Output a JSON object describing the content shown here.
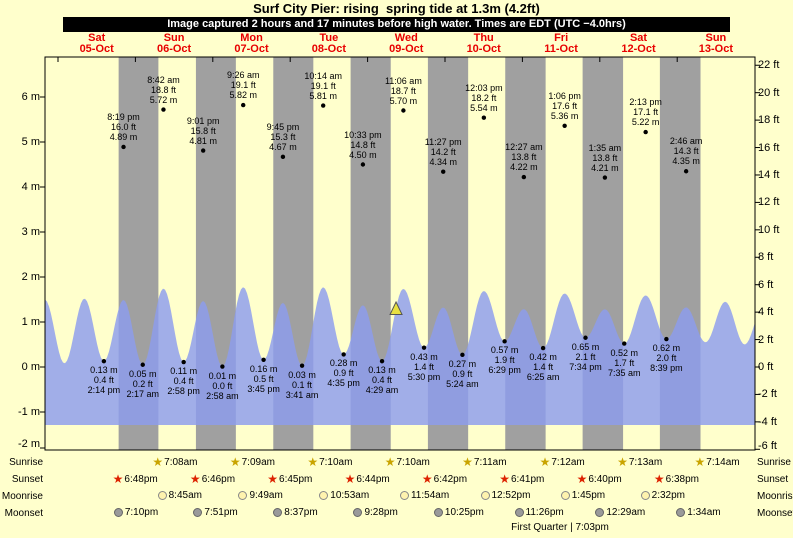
{
  "header": {
    "title": "Surf City Pier: rising  spring tide at 1.3m (4.2ft)",
    "subtitle": "Image captured 2 hours and 17 minutes before high water. Times are EDT (UTC −4.0hrs)"
  },
  "days": [
    {
      "name": "Sat",
      "date": "05-Oct"
    },
    {
      "name": "Sun",
      "date": "06-Oct"
    },
    {
      "name": "Mon",
      "date": "07-Oct"
    },
    {
      "name": "Tue",
      "date": "08-Oct"
    },
    {
      "name": "Wed",
      "date": "09-Oct"
    },
    {
      "name": "Thu",
      "date": "10-Oct"
    },
    {
      "name": "Fri",
      "date": "11-Oct"
    },
    {
      "name": "Sat",
      "date": "12-Oct"
    },
    {
      "name": "Sun",
      "date": "13-Oct"
    }
  ],
  "axes": {
    "meters": [
      {
        "v": 6,
        "label": "6 m"
      },
      {
        "v": 5,
        "label": "5 m"
      },
      {
        "v": 4,
        "label": "4 m"
      },
      {
        "v": 3,
        "label": "3 m"
      },
      {
        "v": 2,
        "label": "2 m"
      },
      {
        "v": 1,
        "label": "1 m"
      },
      {
        "v": 0,
        "label": "0 m"
      },
      {
        "v": -1,
        "label": "-1 m"
      },
      {
        "v": -2,
        "label": "-2 m"
      }
    ],
    "feet": [
      {
        "v": 22,
        "label": "22 ft"
      },
      {
        "v": 20,
        "label": "20 ft"
      },
      {
        "v": 18,
        "label": "18 ft"
      },
      {
        "v": 16,
        "label": "16 ft"
      },
      {
        "v": 14,
        "label": "14 ft"
      },
      {
        "v": 12,
        "label": "12 ft"
      },
      {
        "v": 10,
        "label": "10 ft"
      },
      {
        "v": 8,
        "label": "8 ft"
      },
      {
        "v": 6,
        "label": "6 ft"
      },
      {
        "v": 4,
        "label": "4 ft"
      },
      {
        "v": 2,
        "label": "2 ft"
      },
      {
        "v": 0,
        "label": "0 ft"
      },
      {
        "v": -2,
        "label": "-2 ft"
      },
      {
        "v": -4,
        "label": "-4 ft"
      },
      {
        "v": -6,
        "label": "-6 ft"
      }
    ]
  },
  "chart_data": {
    "type": "area",
    "title": "Surf City Pier: rising  spring tide at 1.3m (4.2ft)",
    "y_axis": {
      "meters_range": [
        -2,
        7
      ],
      "feet_range": [
        -6,
        22
      ],
      "grid": false
    },
    "high_tides": [
      {
        "day": 0,
        "hour": 20.32,
        "time": "8:19 pm",
        "ft": "16.0 ft",
        "m": "4.89 m"
      },
      {
        "day": 1,
        "hour": 8.7,
        "time": "8:42 am",
        "ft": "18.8 ft",
        "m": "5.72 m"
      },
      {
        "day": 1,
        "hour": 21.02,
        "time": "9:01 pm",
        "ft": "15.8 ft",
        "m": "4.81 m"
      },
      {
        "day": 2,
        "hour": 9.43,
        "time": "9:26 am",
        "ft": "19.1 ft",
        "m": "5.82 m"
      },
      {
        "day": 2,
        "hour": 21.75,
        "time": "9:45 pm",
        "ft": "15.3 ft",
        "m": "4.67 m"
      },
      {
        "day": 3,
        "hour": 10.23,
        "time": "10:14 am",
        "ft": "19.1 ft",
        "m": "5.81 m"
      },
      {
        "day": 3,
        "hour": 22.55,
        "time": "10:33 pm",
        "ft": "14.8 ft",
        "m": "4.50 m"
      },
      {
        "day": 4,
        "hour": 11.1,
        "time": "11:06 am",
        "ft": "18.7 ft",
        "m": "5.70 m"
      },
      {
        "day": 4,
        "hour": 23.45,
        "time": "11:27 pm",
        "ft": "14.2 ft",
        "m": "4.34 m"
      },
      {
        "day": 5,
        "hour": 12.05,
        "time": "12:03 pm",
        "ft": "18.2 ft",
        "m": "5.54 m"
      },
      {
        "day": 6,
        "hour": 0.45,
        "time": "12:27 am",
        "ft": "13.8 ft",
        "m": "4.22 m"
      },
      {
        "day": 6,
        "hour": 13.1,
        "time": "1:06 pm",
        "ft": "17.6 ft",
        "m": "5.36 m"
      },
      {
        "day": 7,
        "hour": 1.58,
        "time": "1:35 am",
        "ft": "13.8 ft",
        "m": "4.21 m"
      },
      {
        "day": 7,
        "hour": 14.22,
        "time": "2:13 pm",
        "ft": "17.1 ft",
        "m": "5.22 m"
      },
      {
        "day": 8,
        "hour": 2.77,
        "time": "2:46 am",
        "ft": "14.3 ft",
        "m": "4.35 m"
      }
    ],
    "low_tides": [
      {
        "day": 0,
        "hour": 14.23,
        "m": "0.13 m",
        "ft": "0.4 ft",
        "time": "2:14 pm"
      },
      {
        "day": 1,
        "hour": 2.28,
        "m": "0.05 m",
        "ft": "0.2 ft",
        "time": "2:17 am"
      },
      {
        "day": 1,
        "hour": 14.97,
        "m": "0.11 m",
        "ft": "0.4 ft",
        "time": "2:58 pm"
      },
      {
        "day": 2,
        "hour": 2.97,
        "m": "0.01 m",
        "ft": "0.0 ft",
        "time": "2:58 am"
      },
      {
        "day": 2,
        "hour": 15.75,
        "m": "0.16 m",
        "ft": "0.5 ft",
        "time": "3:45 pm"
      },
      {
        "day": 3,
        "hour": 3.68,
        "m": "0.03 m",
        "ft": "0.1 ft",
        "time": "3:41 am"
      },
      {
        "day": 3,
        "hour": 16.58,
        "m": "0.28 m",
        "ft": "0.9 ft",
        "time": "4:35 pm"
      },
      {
        "day": 4,
        "hour": 4.48,
        "m": "0.13 m",
        "ft": "0.4 ft",
        "time": "4:29 am"
      },
      {
        "day": 4,
        "hour": 17.5,
        "m": "0.43 m",
        "ft": "1.4 ft",
        "time": "5:30 pm"
      },
      {
        "day": 5,
        "hour": 5.4,
        "m": "0.27 m",
        "ft": "0.9 ft",
        "time": "5:24 am"
      },
      {
        "day": 5,
        "hour": 18.48,
        "m": "0.57 m",
        "ft": "1.9 ft",
        "time": "6:29 pm"
      },
      {
        "day": 6,
        "hour": 6.42,
        "m": "0.42 m",
        "ft": "1.4 ft",
        "time": "6:25 am"
      },
      {
        "day": 6,
        "hour": 19.57,
        "m": "0.65 m",
        "ft": "2.1 ft",
        "time": "7:34 pm"
      },
      {
        "day": 7,
        "hour": 7.58,
        "m": "0.52 m",
        "ft": "1.7 ft",
        "time": "7:35 am"
      },
      {
        "day": 7,
        "hour": 20.65,
        "m": "0.62 m",
        "ft": "2.0 ft",
        "time": "8:39 pm"
      }
    ],
    "curve_edge": [
      [
        -4.1,
        1.5
      ],
      [
        2.0,
        0.08
      ],
      [
        8.2,
        1.52
      ],
      [
        200.8,
        0.55
      ],
      [
        206.9,
        1.45
      ],
      [
        212.9,
        0.5
      ],
      [
        219.0,
        1.4
      ]
    ],
    "current_marker": {
      "day": 4,
      "hour": 8.82,
      "height_m": 1.3,
      "label": "1.3m (4.2ft)"
    },
    "colors": {
      "background": "#ffffcc",
      "night": "#a0a0a0",
      "wave": "#8c9cee",
      "marker": "#e8e040",
      "day_label": "#e80000",
      "sunrise_star": "#c9a400",
      "sunset_star": "#dd2200",
      "moonrise_fill": "#fff3ae",
      "moonset_fill": "#9a9a9a"
    }
  },
  "astro": {
    "sunrise": {
      "label": "Sunrise",
      "items": [
        {
          "day": 1,
          "hour": 7.13,
          "time": "7:08am"
        },
        {
          "day": 2,
          "hour": 7.15,
          "time": "7:09am"
        },
        {
          "day": 3,
          "hour": 7.17,
          "time": "7:10am"
        },
        {
          "day": 4,
          "hour": 7.17,
          "time": "7:10am"
        },
        {
          "day": 5,
          "hour": 7.18,
          "time": "7:11am"
        },
        {
          "day": 6,
          "hour": 7.2,
          "time": "7:12am"
        },
        {
          "day": 7,
          "hour": 7.22,
          "time": "7:13am"
        },
        {
          "day": 8,
          "hour": 7.23,
          "time": "7:14am"
        }
      ]
    },
    "sunset": {
      "label": "Sunset",
      "items": [
        {
          "day": 0,
          "hour": 18.8,
          "time": "6:48pm"
        },
        {
          "day": 1,
          "hour": 18.77,
          "time": "6:46pm"
        },
        {
          "day": 2,
          "hour": 18.75,
          "time": "6:45pm"
        },
        {
          "day": 3,
          "hour": 18.73,
          "time": "6:44pm"
        },
        {
          "day": 4,
          "hour": 18.7,
          "time": "6:42pm"
        },
        {
          "day": 5,
          "hour": 18.68,
          "time": "6:41pm"
        },
        {
          "day": 6,
          "hour": 18.67,
          "time": "6:40pm"
        },
        {
          "day": 7,
          "hour": 18.63,
          "time": "6:38pm"
        }
      ]
    },
    "moonrise": {
      "label": "Moonrise",
      "items": [
        {
          "day": 1,
          "hour": 8.75,
          "time": "8:45am"
        },
        {
          "day": 2,
          "hour": 9.82,
          "time": "9:49am"
        },
        {
          "day": 3,
          "hour": 10.88,
          "time": "10:53am"
        },
        {
          "day": 4,
          "hour": 11.9,
          "time": "11:54am"
        },
        {
          "day": 5,
          "hour": 12.87,
          "time": "12:52pm"
        },
        {
          "day": 6,
          "hour": 13.75,
          "time": "1:45pm"
        },
        {
          "day": 7,
          "hour": 14.53,
          "time": "2:32pm"
        }
      ]
    },
    "moonset": {
      "label": "Moonset",
      "items": [
        {
          "day": 0,
          "hour": 19.17,
          "time": "7:10pm"
        },
        {
          "day": 1,
          "hour": 19.85,
          "time": "7:51pm"
        },
        {
          "day": 2,
          "hour": 20.62,
          "time": "8:37pm"
        },
        {
          "day": 3,
          "hour": 21.47,
          "time": "9:28pm"
        },
        {
          "day": 4,
          "hour": 22.42,
          "time": "10:25pm"
        },
        {
          "day": 5,
          "hour": 23.43,
          "time": "11:26pm"
        },
        {
          "day": 7,
          "hour": 0.48,
          "time": "12:29am"
        },
        {
          "day": 8,
          "hour": 1.57,
          "time": "1:34am"
        }
      ]
    }
  },
  "moon_phase": "First Quarter | 7:03pm"
}
